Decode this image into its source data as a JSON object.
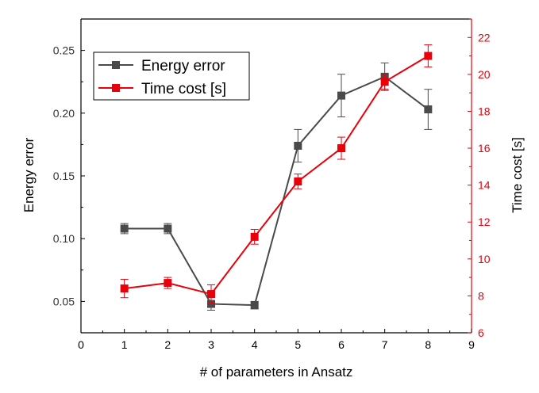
{
  "chart_data": {
    "type": "line",
    "title": "",
    "xlabel": "# of parameters in Ansatz",
    "ylabel_left": "Energy error",
    "ylabel_right": "Time cost [s]",
    "xlim": [
      0,
      9
    ],
    "ylim_left": [
      0.025,
      0.275
    ],
    "ylim_right": [
      6,
      23
    ],
    "x_ticks": [
      "0",
      "1",
      "2",
      "3",
      "4",
      "5",
      "6",
      "7",
      "8",
      "9"
    ],
    "y_left_ticks": [
      "0.05",
      "0.10",
      "0.15",
      "0.20",
      "0.25"
    ],
    "y_right_ticks": [
      "6",
      "8",
      "10",
      "12",
      "14",
      "16",
      "18",
      "20",
      "22"
    ],
    "grid": false,
    "legend_position": "top-left",
    "series": [
      {
        "name": "Energy error",
        "axis": "left",
        "color": "#4a4a4a",
        "marker": "square",
        "x": [
          1,
          2,
          3,
          4,
          5,
          6,
          7,
          8
        ],
        "y": [
          0.108,
          0.108,
          0.048,
          0.047,
          0.174,
          0.214,
          0.229,
          0.203
        ],
        "err": [
          0.004,
          0.004,
          0.005,
          0.003,
          0.013,
          0.017,
          0.011,
          0.016
        ]
      },
      {
        "name": "Time cost [s]",
        "axis": "right",
        "color": "#e8000b",
        "marker": "square",
        "x": [
          1,
          2,
          3,
          4,
          5,
          6,
          7,
          8
        ],
        "y": [
          8.4,
          8.7,
          8.1,
          11.2,
          14.2,
          16.0,
          19.6,
          21.0
        ],
        "err": [
          0.5,
          0.3,
          0.5,
          0.4,
          0.4,
          0.6,
          0.4,
          0.6
        ]
      }
    ]
  }
}
